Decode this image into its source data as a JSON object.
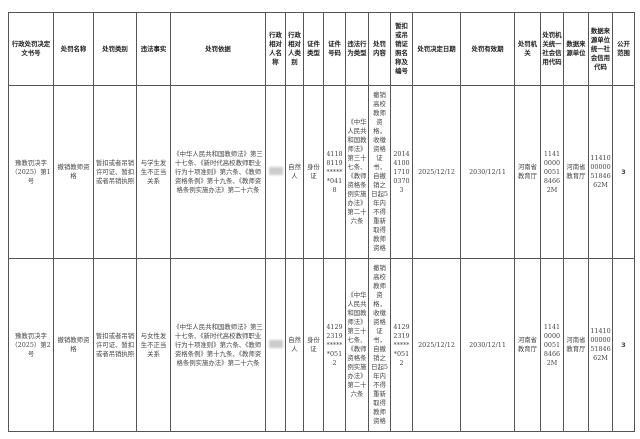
{
  "headers": [
    "行政处罚决定文书号",
    "处罚名称",
    "处罚类别",
    "违法事实",
    "处罚依据",
    "行政相对人名称",
    "行政相对人类别",
    "证件类型",
    "证件号码",
    "违法行为类型",
    "处罚内容",
    "暂扣或吊销证照名称及编号",
    "处罚决定日期",
    "处罚有效期",
    "处罚机关",
    "处罚机关统一社会信用代码",
    "数据来源单位",
    "数据来源单位统一社会信用代码",
    "公开范围"
  ],
  "rows": [
    {
      "doc_no": "豫教罚决字（2025）第1号",
      "name": "撤销教师资格",
      "category": "暂扣或者吊销许可证、暂扣或者吊销执照",
      "fact": "与学生发生不正当关系",
      "basis": "《中华人民共和国教师法》第三十七条、《新时代高校教师职业行为十项准则》第六条、《教师资格条例》第十九条、《教师资格条例实施办法》第二十六条",
      "party_name": "",
      "party_type": "自然人",
      "id_type": "身份证",
      "id_no": "41188119******0418",
      "violation_type": "《中华人民共和国教师法》第三十七条、《教师资格条例实施办法》第二十六条",
      "content": "撤销高校教师资格，收缴资格证书，自撤销之日起5年内不得重新取得教师资格",
      "license": "20144100171003703",
      "decision_date": "2025/12/12",
      "valid_until": "2030/12/11",
      "authority": "河南省教育厅",
      "authority_code": "11410000005184662M",
      "source": "河南省教育厅",
      "source_code": "11410000005184662M",
      "scope": "3"
    },
    {
      "doc_no": "豫教罚决字（2025）第2号",
      "name": "撤销教师资格",
      "category": "暂扣或者吊销许可证、暂扣或者吊销执照",
      "fact": "与女性发生不正当关系",
      "basis": "《中华人民共和国教师法》第三十七条、《新时代高校教师职业行为十项准则》第六条、《教师资格条例》第十九条、《教师资格条例实施办法》第二十六条",
      "party_name": "",
      "party_type": "自然人",
      "id_type": "身份证",
      "id_no": "41292319******0512",
      "violation_type": "《中华人民共和国教师法》第三十七条、《教师资格条例实施办法》第二十六条",
      "content": "撤销高校教师资格，收缴资格证书，自撤销之日起5年内不得重新取得教师资格",
      "license": "41292319******0512",
      "decision_date": "2025/12/12",
      "valid_until": "2030/12/11",
      "authority": "河南省教育厅",
      "authority_code": "11410000005184662M",
      "source": "河南省教育厅",
      "source_code": "11410000005184662M",
      "scope": "3"
    }
  ]
}
